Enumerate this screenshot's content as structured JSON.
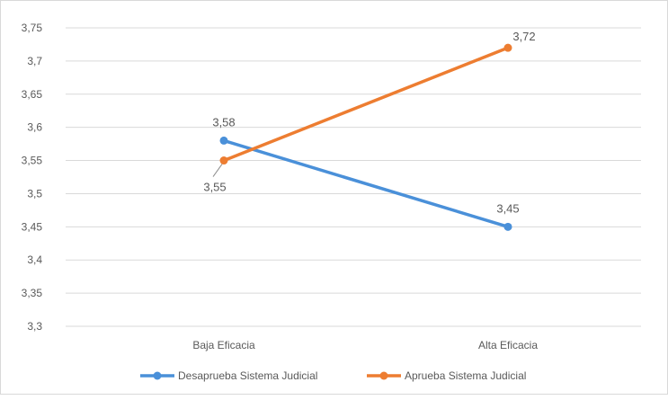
{
  "chart_data": {
    "type": "line",
    "categories": [
      "Baja Eficacia",
      "Alta Eficacia"
    ],
    "series": [
      {
        "name": "Desaprueba Sistema Judicial",
        "values": [
          3.58,
          3.45
        ],
        "labels": [
          "3,58",
          "3,45"
        ],
        "color": "#4a90d9"
      },
      {
        "name": "Aprueba Sistema Judicial",
        "values": [
          3.55,
          3.72
        ],
        "labels": [
          "3,55",
          "3,72"
        ],
        "color": "#ed7d31"
      }
    ],
    "y_ticks": [
      3.3,
      3.35,
      3.4,
      3.45,
      3.5,
      3.55,
      3.6,
      3.65,
      3.7,
      3.75
    ],
    "y_tick_labels": [
      "3,3",
      "3,35",
      "3,4",
      "3,45",
      "3,5",
      "3,55",
      "3,6",
      "3,65",
      "3,7",
      "3,75"
    ],
    "ylim": [
      3.3,
      3.75
    ],
    "grid": true,
    "legend_position": "bottom",
    "title": "",
    "xlabel": "",
    "ylabel": ""
  }
}
